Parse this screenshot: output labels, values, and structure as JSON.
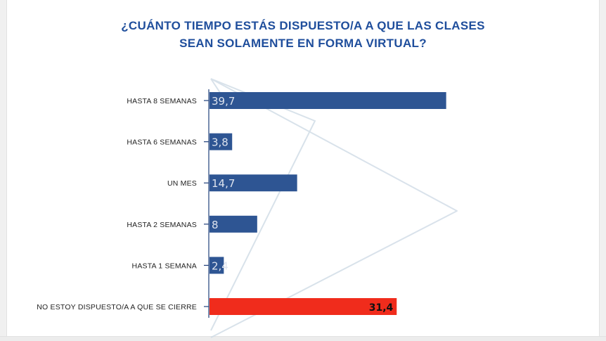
{
  "title": {
    "line1": "¿CUÁNTO TIEMPO ESTÁS DISPUESTO/A A QUE LAS CLASES",
    "line2": "SEAN SOLAMENTE EN FORMA VIRTUAL?"
  },
  "colors": {
    "title": "#1f4e9c",
    "bar": "#2e5593",
    "highlight_bar": "#f02c1c",
    "axis": "#1f3f7a",
    "watermark": "#cfdbe6"
  },
  "chart_data": {
    "type": "bar",
    "orientation": "horizontal",
    "title": "¿CUÁNTO TIEMPO ESTÁS DISPUESTO/A A QUE LAS CLASES SEAN SOLAMENTE EN FORMA VIRTUAL?",
    "categories": [
      "HASTA 8 SEMANAS",
      "HASTA 6 SEMANAS",
      "UN MES",
      "HASTA 2 SEMANAS",
      "HASTA 1 SEMANA",
      "NO ESTOY DISPUESTO/A A QUE SE CIERRE"
    ],
    "values": [
      39.7,
      3.8,
      14.7,
      8,
      2.4,
      31.4
    ],
    "value_labels": [
      "39,7",
      "3,8",
      "14,7",
      "8",
      "2,4",
      "31,4"
    ],
    "highlighted_category": "NO ESTOY DISPUESTO/A A QUE SE CIERRE",
    "xlim": [
      0,
      40
    ],
    "grid": false,
    "legend": "none"
  }
}
